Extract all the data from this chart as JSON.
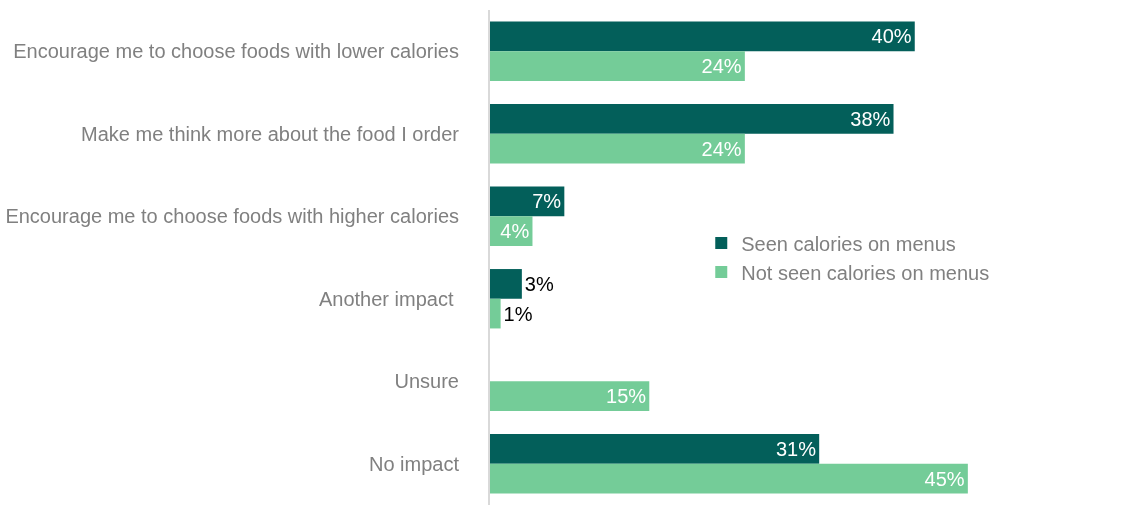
{
  "chart_data": {
    "type": "bar",
    "orientation": "horizontal",
    "categories": [
      "Encourage me to choose foods with lower calories",
      "Make me think more about the food I order",
      "Encourage me to choose foods with higher calories",
      "Another impact ",
      "Unsure",
      "No impact"
    ],
    "series": [
      {
        "name": "Seen calories on menus",
        "color": "#035f5a",
        "values": [
          40,
          38,
          7,
          3,
          null,
          31
        ],
        "value_labels": [
          "40%",
          "38%",
          "7%",
          "3%",
          null,
          "31%"
        ]
      },
      {
        "name": "Not seen calories on menus",
        "color": "#74cc98",
        "values": [
          24,
          24,
          4,
          1,
          15,
          45
        ],
        "value_labels": [
          "24%",
          "24%",
          "4%",
          "1%",
          "15%",
          "45%"
        ]
      }
    ],
    "grid": false,
    "legend": "right"
  }
}
